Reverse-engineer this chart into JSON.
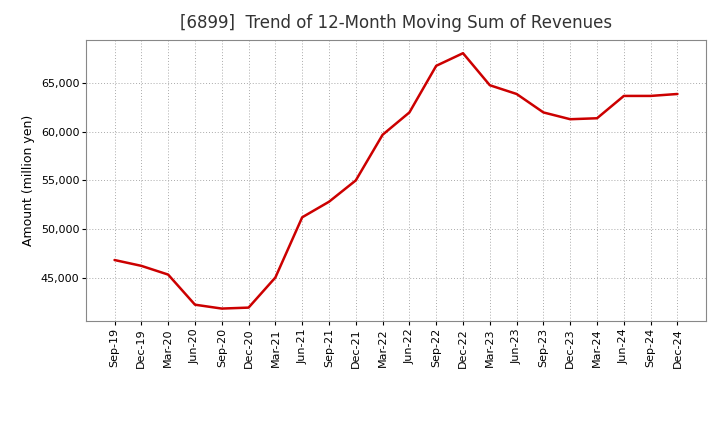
{
  "title": "[6899]  Trend of 12-Month Moving Sum of Revenues",
  "ylabel": "Amount (million yen)",
  "line_color": "#cc0000",
  "background_color": "#ffffff",
  "plot_bg_color": "#ffffff",
  "grid_color": "#aaaaaa",
  "labels": [
    "Sep-19",
    "Dec-19",
    "Mar-20",
    "Jun-20",
    "Sep-20",
    "Dec-20",
    "Mar-21",
    "Jun-21",
    "Sep-21",
    "Dec-21",
    "Mar-22",
    "Jun-22",
    "Sep-22",
    "Dec-22",
    "Mar-23",
    "Jun-23",
    "Sep-23",
    "Dec-23",
    "Mar-24",
    "Jun-24",
    "Sep-24",
    "Dec-24"
  ],
  "values": [
    46800,
    46200,
    45300,
    42200,
    41800,
    41900,
    45000,
    51200,
    52800,
    55000,
    59700,
    62000,
    66800,
    68100,
    64800,
    63900,
    62000,
    61300,
    61400,
    63700,
    63700,
    63900
  ],
  "ylim_min": 40500,
  "ylim_max": 69500,
  "yticks": [
    45000,
    50000,
    55000,
    60000,
    65000
  ],
  "title_fontsize": 12,
  "title_fontweight": "normal",
  "axis_fontsize": 9,
  "tick_fontsize": 8,
  "line_width": 1.8
}
